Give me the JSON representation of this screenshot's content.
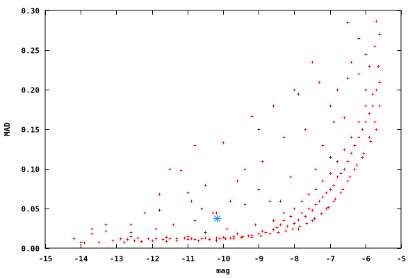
{
  "chart_data": {
    "type": "scatter",
    "title": "",
    "xlabel": "mag",
    "ylabel": "MAD",
    "xlim": [
      -15,
      -5
    ],
    "ylim": [
      0,
      0.3
    ],
    "xticks": [
      -15,
      -14,
      -13,
      -12,
      -11,
      -10,
      -9,
      -8,
      -7,
      -6,
      -5
    ],
    "xtick_labels": [
      "-15",
      "-14",
      "-13",
      "-12",
      "-11",
      "-10",
      "-9",
      "-8",
      "-7",
      "-6",
      "-5"
    ],
    "yticks": [
      0,
      0.05,
      0.1,
      0.15,
      0.2,
      0.25,
      0.3
    ],
    "ytick_labels": [
      "0.00",
      "0.05",
      "0.10",
      "0.15",
      "0.20",
      "0.25",
      "0.30"
    ],
    "grid": false,
    "colors": {
      "main": "#ff0000",
      "secondary": "#333333",
      "highlight": "#1e90ff"
    },
    "series": [
      {
        "marker": "plus",
        "color": "#ff0000",
        "points": [
          [
            -14.2,
            0.012
          ],
          [
            -14.0,
            0.008
          ],
          [
            -13.9,
            0.007
          ],
          [
            -13.7,
            0.025
          ],
          [
            -13.5,
            0.008
          ],
          [
            -13.3,
            0.022
          ],
          [
            -13.1,
            0.01
          ],
          [
            -12.9,
            0.012
          ],
          [
            -12.8,
            0.008
          ],
          [
            -12.6,
            0.02
          ],
          [
            -12.5,
            0.01
          ],
          [
            -12.3,
            0.009
          ],
          [
            -12.2,
            0.045
          ],
          [
            -12.1,
            0.012
          ],
          [
            -12.0,
            0.01
          ],
          [
            -11.9,
            0.025
          ],
          [
            -11.8,
            0.068
          ],
          [
            -11.7,
            0.011
          ],
          [
            -11.6,
            0.009
          ],
          [
            -11.5,
            0.012
          ],
          [
            -11.4,
            0.03
          ],
          [
            -11.3,
            0.01
          ],
          [
            -11.2,
            0.098
          ],
          [
            -11.1,
            0.013
          ],
          [
            -11.0,
            0.011
          ],
          [
            -10.9,
            0.012
          ],
          [
            -10.8,
            0.035
          ],
          [
            -10.7,
            0.01
          ],
          [
            -10.6,
            0.012
          ],
          [
            -10.5,
            0.02
          ],
          [
            -10.4,
            0.011
          ],
          [
            -10.3,
            0.045
          ],
          [
            -10.2,
            0.013
          ],
          [
            -10.1,
            0.012
          ],
          [
            -10.0,
            0.014
          ],
          [
            -9.9,
            0.025
          ],
          [
            -9.8,
            0.013
          ],
          [
            -9.7,
            0.015
          ],
          [
            -9.6,
            0.018
          ],
          [
            -9.5,
            0.014
          ],
          [
            -9.4,
            0.055
          ],
          [
            -9.3,
            0.016
          ],
          [
            -9.2,
            0.017
          ],
          [
            -9.1,
            0.03
          ],
          [
            -9.0,
            0.018
          ],
          [
            -8.9,
            0.022
          ],
          [
            -8.8,
            0.02
          ],
          [
            -8.7,
            0.06
          ],
          [
            -8.6,
            0.024
          ],
          [
            -8.5,
            0.026
          ],
          [
            -8.4,
            0.03
          ],
          [
            -8.3,
            0.035
          ],
          [
            -8.2,
            0.028
          ],
          [
            -8.1,
            0.04
          ],
          [
            -8.0,
            0.032
          ],
          [
            -7.9,
            0.036
          ],
          [
            -7.8,
            0.045
          ],
          [
            -7.7,
            0.04
          ],
          [
            -7.6,
            0.05
          ],
          [
            -7.5,
            0.048
          ],
          [
            -7.4,
            0.055
          ],
          [
            -7.3,
            0.06
          ],
          [
            -7.2,
            0.065
          ],
          [
            -7.1,
            0.07
          ],
          [
            -7.0,
            0.075
          ],
          [
            -6.9,
            0.08
          ],
          [
            -6.8,
            0.09
          ],
          [
            -6.7,
            0.095
          ],
          [
            -6.6,
            0.1
          ],
          [
            -6.5,
            0.11
          ],
          [
            -6.4,
            0.12
          ],
          [
            -6.3,
            0.13
          ],
          [
            -6.2,
            0.14
          ],
          [
            -6.1,
            0.15
          ],
          [
            -6.0,
            0.16
          ],
          [
            -5.9,
            0.17
          ],
          [
            -5.8,
            0.18
          ],
          [
            -5.7,
            0.2
          ],
          [
            -5.6,
            0.21
          ],
          [
            -12.7,
            0.011
          ],
          [
            -12.4,
            0.013
          ],
          [
            -11.9,
            0.012
          ],
          [
            -11.6,
            0.014
          ],
          [
            -11.3,
            0.012
          ],
          [
            -11.0,
            0.015
          ],
          [
            -10.8,
            0.011
          ],
          [
            -10.5,
            0.013
          ],
          [
            -10.2,
            0.01
          ],
          [
            -9.95,
            0.012
          ],
          [
            -9.7,
            0.012
          ],
          [
            -9.45,
            0.015
          ],
          [
            -9.2,
            0.014
          ],
          [
            -8.95,
            0.016
          ],
          [
            -8.7,
            0.018
          ],
          [
            -8.45,
            0.02
          ],
          [
            -8.25,
            0.022
          ],
          [
            -8.05,
            0.025
          ],
          [
            -7.85,
            0.028
          ],
          [
            -7.65,
            0.032
          ],
          [
            -7.45,
            0.038
          ],
          [
            -7.25,
            0.044
          ],
          [
            -7.05,
            0.052
          ],
          [
            -6.85,
            0.062
          ],
          [
            -6.65,
            0.075
          ],
          [
            -6.45,
            0.09
          ],
          [
            -6.25,
            0.105
          ],
          [
            -6.05,
            0.12
          ],
          [
            -5.85,
            0.135
          ],
          [
            -5.7,
            0.15
          ],
          [
            -8.6,
            0.035
          ],
          [
            -8.3,
            0.045
          ],
          [
            -8.0,
            0.05
          ],
          [
            -7.8,
            0.06
          ],
          [
            -7.6,
            0.068
          ],
          [
            -7.4,
            0.075
          ],
          [
            -7.2,
            0.085
          ],
          [
            -7.0,
            0.095
          ],
          [
            -6.8,
            0.11
          ],
          [
            -6.6,
            0.125
          ],
          [
            -6.4,
            0.14
          ],
          [
            -6.2,
            0.16
          ],
          [
            -6.0,
            0.18
          ],
          [
            -5.8,
            0.195
          ],
          [
            -5.65,
            0.23
          ],
          [
            -7.9,
            0.025
          ],
          [
            -7.5,
            0.035
          ],
          [
            -7.1,
            0.05
          ],
          [
            -6.9,
            0.06
          ],
          [
            -6.7,
            0.07
          ],
          [
            -6.5,
            0.085
          ],
          [
            -6.3,
            0.1
          ],
          [
            -6.1,
            0.115
          ],
          [
            -5.9,
            0.14
          ],
          [
            -5.75,
            0.16
          ],
          [
            -5.6,
            0.18
          ],
          [
            -6.5,
            0.285
          ],
          [
            -5.7,
            0.287
          ],
          [
            -7.5,
            0.235
          ],
          [
            -6.0,
            0.245
          ],
          [
            -8.0,
            0.2
          ],
          [
            -7.3,
            0.21
          ],
          [
            -9.2,
            0.167
          ],
          [
            -8.6,
            0.18
          ],
          [
            -10.8,
            0.13
          ],
          [
            -10.0,
            0.133
          ],
          [
            -9.4,
            0.1
          ],
          [
            -11.5,
            0.1
          ],
          [
            -5.6,
            0.27
          ],
          [
            -6.2,
            0.22
          ],
          [
            -7.0,
            0.18
          ],
          [
            -8.3,
            0.14
          ],
          [
            -9.6,
            0.085
          ],
          [
            -10.5,
            0.08
          ],
          [
            -8.9,
            0.11
          ],
          [
            -7.7,
            0.15
          ],
          [
            -6.8,
            0.2
          ],
          [
            -6.4,
            0.235
          ],
          [
            -5.75,
            0.255
          ],
          [
            -9.8,
            0.06
          ],
          [
            -10.9,
            0.06
          ],
          [
            -12.6,
            0.03
          ],
          [
            -13.7,
            0.018
          ],
          [
            -7.2,
            0.13
          ],
          [
            -8.1,
            0.09
          ],
          [
            -6.6,
            0.165
          ],
          [
            -5.9,
            0.23
          ],
          [
            -7.4,
            0.1
          ],
          [
            -9.0,
            0.075
          ],
          [
            -10.2,
            0.045
          ]
        ]
      },
      {
        "marker": "plus",
        "color": "#333333",
        "points": [
          [
            -13.3,
            0.03
          ],
          [
            -12.6,
            0.015
          ],
          [
            -11.8,
            0.048
          ],
          [
            -11.0,
            0.07
          ],
          [
            -10.6,
            0.05
          ],
          [
            -9.0,
            0.15
          ],
          [
            -7.9,
            0.195
          ],
          [
            -6.9,
            0.16
          ],
          [
            -6.2,
            0.265
          ],
          [
            -6.0,
            0.2
          ],
          [
            -7.0,
            0.115
          ],
          [
            -10.5,
            0.02
          ],
          [
            -8.4,
            0.06
          ],
          [
            -6.5,
            0.215
          ]
        ]
      },
      {
        "marker": "star",
        "color": "#1e90ff",
        "points": [
          [
            -10.18,
            0.038
          ]
        ]
      }
    ]
  }
}
